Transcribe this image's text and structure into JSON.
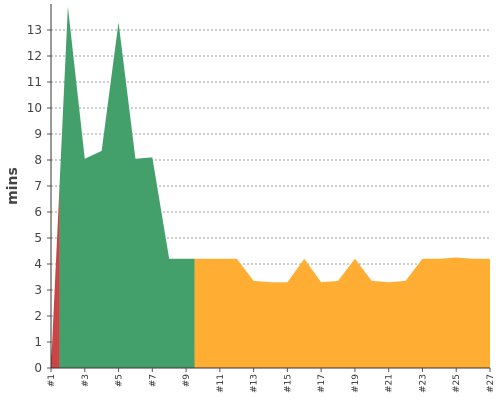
{
  "chart_data": {
    "type": "area",
    "ylabel": "mins",
    "xlabel": "",
    "title": "",
    "ylim": [
      0,
      14
    ],
    "yticks": [
      0,
      1,
      2,
      3,
      4,
      5,
      6,
      7,
      8,
      9,
      10,
      11,
      12,
      13
    ],
    "grid": true,
    "x": [
      1,
      2,
      3,
      4,
      5,
      6,
      7,
      8,
      9,
      10,
      11,
      12,
      13,
      14,
      15,
      16,
      17,
      18,
      19,
      20,
      21,
      22,
      23,
      24,
      25,
      26,
      27
    ],
    "x_tick_labels": [
      "#1",
      "#3",
      "#5",
      "#7",
      "#9",
      "#11",
      "#13",
      "#15",
      "#17",
      "#19",
      "#21",
      "#23",
      "#25",
      "#27"
    ],
    "values": [
      0,
      13.9,
      8.05,
      8.35,
      13.3,
      8.05,
      8.1,
      4.2,
      4.2,
      4.2,
      4.2,
      4.2,
      3.35,
      3.3,
      3.3,
      4.2,
      3.3,
      3.35,
      4.2,
      3.35,
      3.3,
      3.35,
      4.2,
      4.2,
      4.25,
      4.2,
      4.2
    ],
    "segments": [
      {
        "from": 1,
        "to": 1.5,
        "color": "#cc4444"
      },
      {
        "from": 1.5,
        "to": 9.5,
        "color": "#44a06a"
      },
      {
        "from": 9.5,
        "to": 27,
        "color": "#ffad33"
      }
    ]
  }
}
